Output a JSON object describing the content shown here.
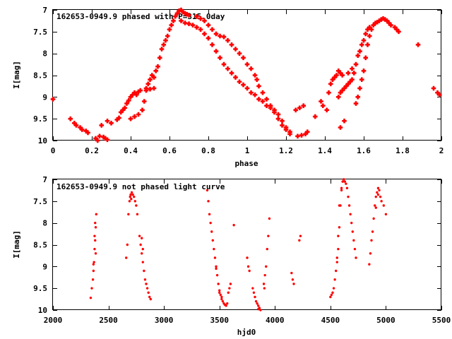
{
  "chart_data": [
    {
      "type": "scatter",
      "title": "162653-0949.9 phased with P=315.0day",
      "xlabel": "phase",
      "ylabel": "I[mag]",
      "xlim": [
        0,
        2
      ],
      "ylim": [
        10,
        7
      ],
      "y_inverted": true,
      "xticks": [
        "0",
        "0.2",
        "0.4",
        "0.6",
        "0.8",
        "1",
        "1.2",
        "1.4",
        "1.6",
        "1.8",
        "2"
      ],
      "yticks": [
        "7",
        "7.5",
        "8",
        "8.5",
        "9",
        "9.5",
        "10"
      ],
      "marker": "filled-cross",
      "color": "#ff0000",
      "grid": false,
      "points": [
        [
          0.0,
          9.05
        ],
        [
          0.09,
          9.5
        ],
        [
          0.11,
          9.6
        ],
        [
          0.12,
          9.65
        ],
        [
          0.14,
          9.7
        ],
        [
          0.15,
          9.75
        ],
        [
          0.17,
          9.78
        ],
        [
          0.18,
          9.82
        ],
        [
          0.22,
          9.95
        ],
        [
          0.23,
          10.0
        ],
        [
          0.24,
          9.9
        ],
        [
          0.26,
          9.92
        ],
        [
          0.27,
          9.95
        ],
        [
          0.28,
          9.98
        ],
        [
          0.25,
          9.65
        ],
        [
          0.28,
          9.55
        ],
        [
          0.3,
          9.6
        ],
        [
          0.33,
          9.52
        ],
        [
          0.34,
          9.48
        ],
        [
          0.35,
          9.35
        ],
        [
          0.36,
          9.3
        ],
        [
          0.37,
          9.25
        ],
        [
          0.38,
          9.15
        ],
        [
          0.39,
          9.08
        ],
        [
          0.4,
          9.0
        ],
        [
          0.41,
          8.95
        ],
        [
          0.42,
          8.9
        ],
        [
          0.43,
          8.95
        ],
        [
          0.44,
          8.88
        ],
        [
          0.45,
          8.85
        ],
        [
          0.4,
          9.5
        ],
        [
          0.42,
          9.45
        ],
        [
          0.44,
          9.4
        ],
        [
          0.46,
          9.3
        ],
        [
          0.47,
          9.1
        ],
        [
          0.48,
          8.8
        ],
        [
          0.49,
          8.7
        ],
        [
          0.5,
          8.6
        ],
        [
          0.51,
          8.5
        ],
        [
          0.52,
          8.55
        ],
        [
          0.48,
          8.85
        ],
        [
          0.5,
          8.82
        ],
        [
          0.52,
          8.8
        ],
        [
          0.53,
          8.4
        ],
        [
          0.54,
          8.3
        ],
        [
          0.55,
          8.1
        ],
        [
          0.56,
          7.9
        ],
        [
          0.57,
          7.8
        ],
        [
          0.58,
          7.7
        ],
        [
          0.59,
          7.6
        ],
        [
          0.6,
          7.45
        ],
        [
          0.61,
          7.35
        ],
        [
          0.62,
          7.25
        ],
        [
          0.63,
          7.15
        ],
        [
          0.64,
          7.08
        ],
        [
          0.65,
          7.02
        ],
        [
          0.66,
          7.0
        ],
        [
          0.67,
          7.05
        ],
        [
          0.68,
          7.08
        ],
        [
          0.69,
          7.1
        ],
        [
          0.7,
          7.12
        ],
        [
          0.66,
          7.25
        ],
        [
          0.68,
          7.3
        ],
        [
          0.7,
          7.32
        ],
        [
          0.72,
          7.35
        ],
        [
          0.74,
          7.4
        ],
        [
          0.76,
          7.45
        ],
        [
          0.78,
          7.55
        ],
        [
          0.8,
          7.65
        ],
        [
          0.82,
          7.8
        ],
        [
          0.84,
          7.95
        ],
        [
          0.86,
          8.1
        ],
        [
          0.88,
          8.25
        ],
        [
          0.9,
          8.35
        ],
        [
          0.92,
          8.45
        ],
        [
          0.94,
          8.55
        ],
        [
          0.96,
          8.65
        ],
        [
          0.98,
          8.72
        ],
        [
          1.0,
          8.8
        ],
        [
          1.02,
          8.9
        ],
        [
          0.74,
          7.15
        ],
        [
          0.76,
          7.2
        ],
        [
          0.78,
          7.25
        ],
        [
          0.8,
          7.35
        ],
        [
          0.82,
          7.45
        ],
        [
          0.84,
          7.55
        ],
        [
          0.86,
          7.6
        ],
        [
          0.88,
          7.62
        ],
        [
          0.9,
          7.7
        ],
        [
          0.92,
          7.8
        ],
        [
          0.94,
          7.9
        ],
        [
          0.96,
          8.0
        ],
        [
          0.98,
          8.1
        ],
        [
          1.0,
          8.25
        ],
        [
          1.02,
          8.35
        ],
        [
          1.04,
          8.5
        ],
        [
          1.05,
          8.6
        ],
        [
          1.06,
          8.75
        ],
        [
          1.08,
          8.9
        ],
        [
          1.1,
          9.05
        ],
        [
          1.12,
          9.2
        ],
        [
          1.14,
          9.35
        ],
        [
          1.16,
          9.5
        ],
        [
          1.18,
          9.65
        ],
        [
          1.2,
          9.75
        ],
        [
          1.22,
          9.8
        ],
        [
          1.04,
          8.95
        ],
        [
          1.06,
          9.05
        ],
        [
          1.08,
          9.1
        ],
        [
          1.1,
          9.2
        ],
        [
          1.12,
          9.25
        ],
        [
          1.14,
          9.3
        ],
        [
          1.16,
          9.4
        ],
        [
          1.18,
          9.55
        ],
        [
          1.2,
          9.7
        ],
        [
          1.22,
          9.85
        ],
        [
          1.25,
          9.3
        ],
        [
          1.27,
          9.25
        ],
        [
          1.29,
          9.2
        ],
        [
          1.26,
          9.9
        ],
        [
          1.28,
          9.88
        ],
        [
          1.3,
          9.85
        ],
        [
          1.31,
          9.8
        ],
        [
          1.35,
          9.45
        ],
        [
          1.38,
          9.1
        ],
        [
          1.39,
          9.2
        ],
        [
          1.41,
          9.3
        ],
        [
          1.42,
          8.9
        ],
        [
          1.43,
          8.7
        ],
        [
          1.44,
          8.6
        ],
        [
          1.45,
          8.55
        ],
        [
          1.46,
          8.5
        ],
        [
          1.47,
          8.4
        ],
        [
          1.48,
          8.45
        ],
        [
          1.49,
          8.5
        ],
        [
          1.5,
          9.55
        ],
        [
          1.48,
          9.7
        ],
        [
          1.52,
          8.45
        ],
        [
          1.54,
          8.35
        ],
        [
          1.56,
          9.15
        ],
        [
          1.57,
          9.0
        ],
        [
          1.58,
          8.8
        ],
        [
          1.59,
          8.6
        ],
        [
          1.6,
          8.4
        ],
        [
          1.61,
          8.1
        ],
        [
          1.62,
          7.8
        ],
        [
          1.63,
          7.6
        ],
        [
          1.64,
          7.45
        ],
        [
          1.65,
          7.35
        ],
        [
          1.66,
          7.3
        ],
        [
          1.67,
          7.28
        ],
        [
          1.68,
          7.25
        ],
        [
          1.69,
          7.22
        ],
        [
          1.7,
          7.2
        ],
        [
          1.71,
          7.22
        ],
        [
          1.72,
          7.25
        ],
        [
          1.73,
          7.3
        ],
        [
          1.74,
          7.35
        ],
        [
          1.76,
          7.4
        ],
        [
          1.77,
          7.45
        ],
        [
          1.78,
          7.5
        ],
        [
          1.58,
          7.95
        ],
        [
          1.59,
          7.8
        ],
        [
          1.6,
          7.7
        ],
        [
          1.61,
          7.55
        ],
        [
          1.62,
          7.45
        ],
        [
          1.63,
          7.4
        ],
        [
          1.57,
          8.05
        ],
        [
          1.56,
          8.25
        ],
        [
          1.55,
          8.45
        ],
        [
          1.54,
          8.6
        ],
        [
          1.53,
          8.65
        ],
        [
          1.52,
          8.7
        ],
        [
          1.51,
          8.75
        ],
        [
          1.5,
          8.8
        ],
        [
          1.49,
          8.85
        ],
        [
          1.48,
          8.9
        ],
        [
          1.47,
          9.0
        ],
        [
          1.88,
          7.8
        ],
        [
          1.96,
          8.8
        ],
        [
          1.98,
          8.9
        ],
        [
          1.99,
          8.95
        ]
      ]
    },
    {
      "type": "scatter",
      "title": "162653-0949.9 not phased light curve",
      "xlabel": "hjd0",
      "ylabel": "I[mag]",
      "xlim": [
        2000,
        5500
      ],
      "ylim": [
        10,
        7
      ],
      "y_inverted": true,
      "xticks": [
        "2000",
        "2500",
        "3000",
        "3500",
        "4000",
        "4500",
        "5000",
        "5500"
      ],
      "yticks": [
        "7",
        "7.5",
        "8",
        "8.5",
        "9",
        "9.5",
        "10"
      ],
      "marker": "filled-circle",
      "color": "#ff0000",
      "grid": false,
      "points": [
        [
          2340,
          9.72
        ],
        [
          2350,
          9.5
        ],
        [
          2360,
          9.3
        ],
        [
          2365,
          9.1
        ],
        [
          2370,
          8.9
        ],
        [
          2375,
          8.6
        ],
        [
          2380,
          8.4
        ],
        [
          2385,
          8.1
        ],
        [
          2390,
          7.8
        ],
        [
          2375,
          8.3
        ],
        [
          2380,
          8.0
        ],
        [
          2385,
          8.7
        ],
        [
          2365,
          8.95
        ],
        [
          2660,
          8.8
        ],
        [
          2670,
          8.5
        ],
        [
          2680,
          7.8
        ],
        [
          2690,
          7.5
        ],
        [
          2700,
          7.35
        ],
        [
          2710,
          7.3
        ],
        [
          2720,
          7.35
        ],
        [
          2730,
          7.4
        ],
        [
          2740,
          7.5
        ],
        [
          2750,
          7.6
        ],
        [
          2760,
          7.8
        ],
        [
          2780,
          8.3
        ],
        [
          2790,
          8.5
        ],
        [
          2800,
          8.7
        ],
        [
          2810,
          8.9
        ],
        [
          2820,
          9.1
        ],
        [
          2830,
          9.3
        ],
        [
          2840,
          9.4
        ],
        [
          2850,
          9.5
        ],
        [
          2860,
          9.6
        ],
        [
          2870,
          9.7
        ],
        [
          2880,
          9.75
        ],
        [
          2695,
          7.4
        ],
        [
          2705,
          7.45
        ],
        [
          2800,
          8.35
        ],
        [
          2810,
          8.6
        ],
        [
          3390,
          7.25
        ],
        [
          3400,
          7.5
        ],
        [
          3410,
          7.8
        ],
        [
          3420,
          8.0
        ],
        [
          3430,
          8.2
        ],
        [
          3440,
          8.4
        ],
        [
          3450,
          8.6
        ],
        [
          3460,
          8.8
        ],
        [
          3470,
          9.0
        ],
        [
          3480,
          9.2
        ],
        [
          3490,
          9.4
        ],
        [
          3500,
          9.55
        ],
        [
          3510,
          9.65
        ],
        [
          3520,
          9.75
        ],
        [
          3530,
          9.8
        ],
        [
          3540,
          9.85
        ],
        [
          3550,
          9.88
        ],
        [
          3560,
          9.9
        ],
        [
          3570,
          9.85
        ],
        [
          3580,
          9.6
        ],
        [
          3590,
          9.5
        ],
        [
          3600,
          9.4
        ],
        [
          3630,
          8.05
        ],
        [
          3470,
          9.05
        ],
        [
          3500,
          9.6
        ],
        [
          3520,
          9.7
        ],
        [
          3750,
          8.8
        ],
        [
          3760,
          9.0
        ],
        [
          3770,
          9.1
        ],
        [
          3800,
          9.5
        ],
        [
          3810,
          9.6
        ],
        [
          3820,
          9.7
        ],
        [
          3830,
          9.8
        ],
        [
          3840,
          9.85
        ],
        [
          3850,
          9.9
        ],
        [
          3860,
          9.95
        ],
        [
          3870,
          10.0
        ],
        [
          3850,
          9.98
        ],
        [
          3900,
          9.4
        ],
        [
          3910,
          9.2
        ],
        [
          3920,
          9.0
        ],
        [
          3930,
          8.6
        ],
        [
          3940,
          8.3
        ],
        [
          3950,
          7.9
        ],
        [
          3905,
          9.5
        ],
        [
          4150,
          9.15
        ],
        [
          4160,
          9.3
        ],
        [
          4170,
          9.4
        ],
        [
          4220,
          8.4
        ],
        [
          4230,
          8.3
        ],
        [
          4500,
          9.7
        ],
        [
          4510,
          9.65
        ],
        [
          4520,
          9.6
        ],
        [
          4530,
          9.5
        ],
        [
          4540,
          9.3
        ],
        [
          4550,
          9.1
        ],
        [
          4560,
          8.9
        ],
        [
          4570,
          8.6
        ],
        [
          4580,
          8.1
        ],
        [
          4590,
          7.6
        ],
        [
          4600,
          7.2
        ],
        [
          4610,
          7.05
        ],
        [
          4620,
          7.0
        ],
        [
          4630,
          7.05
        ],
        [
          4640,
          7.1
        ],
        [
          4650,
          7.2
        ],
        [
          4660,
          7.4
        ],
        [
          4670,
          7.6
        ],
        [
          4680,
          7.8
        ],
        [
          4690,
          8.0
        ],
        [
          4700,
          8.2
        ],
        [
          4710,
          8.4
        ],
        [
          4720,
          8.6
        ],
        [
          4730,
          8.8
        ],
        [
          4600,
          7.25
        ],
        [
          4580,
          7.6
        ],
        [
          4570,
          8.3
        ],
        [
          4560,
          8.8
        ],
        [
          4850,
          8.95
        ],
        [
          4860,
          8.7
        ],
        [
          4870,
          8.4
        ],
        [
          4880,
          8.2
        ],
        [
          4890,
          7.9
        ],
        [
          4900,
          7.6
        ],
        [
          4910,
          7.4
        ],
        [
          4920,
          7.3
        ],
        [
          4930,
          7.2
        ],
        [
          4940,
          7.25
        ],
        [
          4950,
          7.4
        ],
        [
          4960,
          7.5
        ],
        [
          4980,
          7.6
        ],
        [
          5000,
          7.8
        ],
        [
          4910,
          7.65
        ],
        [
          4930,
          7.35
        ]
      ]
    }
  ]
}
